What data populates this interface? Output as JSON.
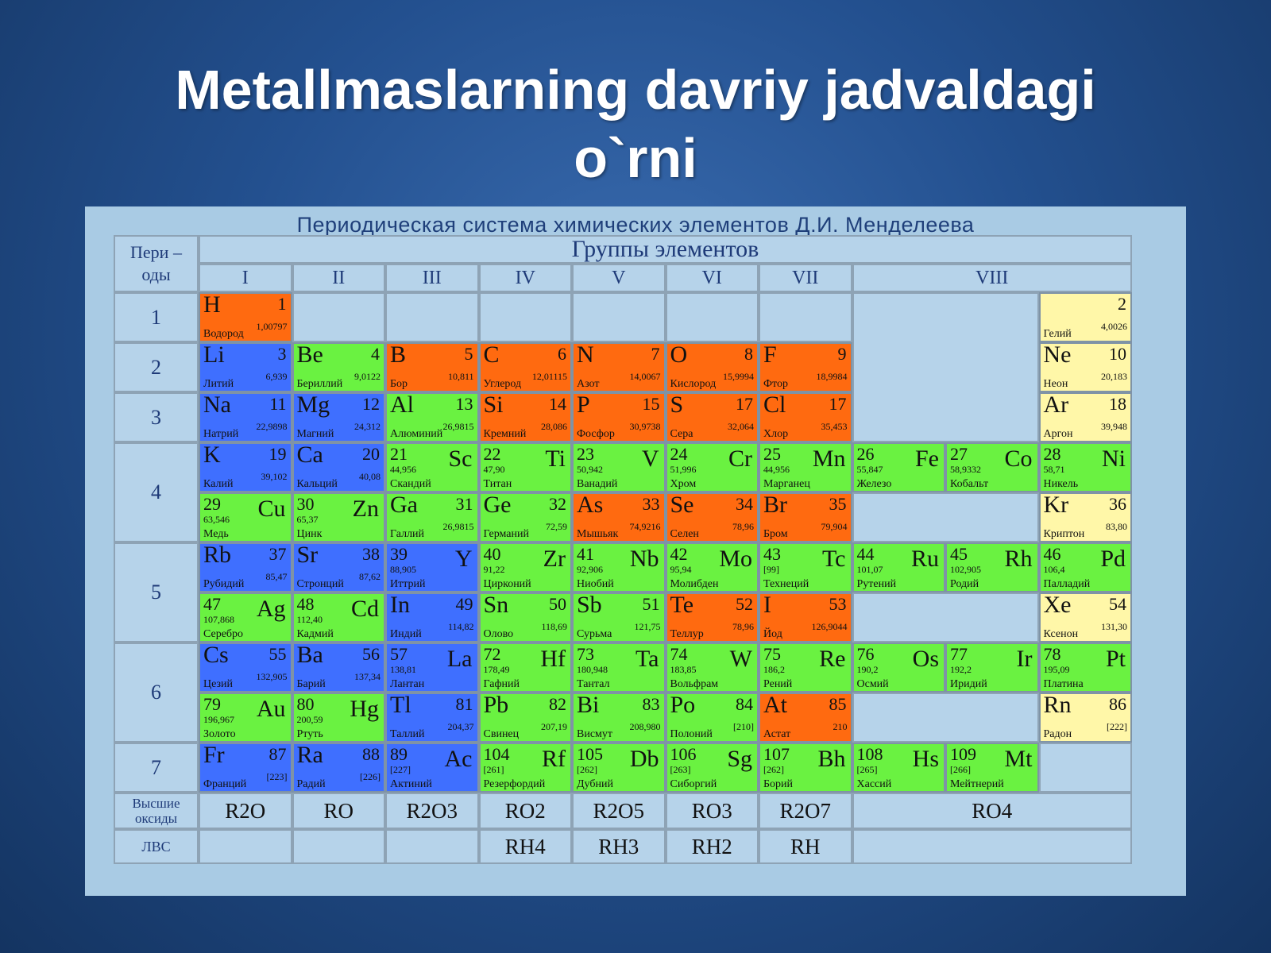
{
  "slide": {
    "title_line1": "Metallmaslarning davriy jadvaldagi",
    "title_line2": "o`rni"
  },
  "colors": {
    "nonmetal": "#ff6a10",
    "metal_sblock": "#3f6fff",
    "metal_other": "#6af241",
    "noble_gas": "#fff7a8",
    "empty": "#b6d3ea",
    "background": "#23508f"
  },
  "table": {
    "caption": "Периодическая система химических элементов Д.И. Менделеева",
    "periods_header": "Пери – оды",
    "groups_header": "Группы элементов",
    "groups": [
      "I",
      "II",
      "III",
      "IV",
      "V",
      "VI",
      "VII",
      "VIII"
    ],
    "periods": [
      "1",
      "2",
      "3",
      "4",
      "5",
      "6",
      "7"
    ],
    "oxides_label": "Высшие оксиды",
    "hydrides_label": "ЛВС",
    "oxides": [
      "R2O",
      "RO",
      "R2O3",
      "RO2",
      "R2O5",
      "RO3",
      "R2O7",
      "RO4"
    ],
    "hydrides": [
      "",
      "",
      "",
      "RH4",
      "RH3",
      "RH2",
      "RH",
      ""
    ]
  },
  "elements": [
    {
      "sym": "H",
      "num": "1",
      "mass": "1,00797",
      "name": "Водород",
      "cat": "nonmetal",
      "row": 0,
      "col": 0,
      "align": "L"
    },
    {
      "sym": "",
      "num": "2",
      "mass": "4,0026",
      "name": "Гелий",
      "cat": "noble_gas",
      "row": 0,
      "col": 9,
      "align": "L"
    },
    {
      "sym": "Li",
      "num": "3",
      "mass": "6,939",
      "name": "Литий",
      "cat": "metal_sblock",
      "row": 1,
      "col": 0,
      "align": "L"
    },
    {
      "sym": "Be",
      "num": "4",
      "mass": "9,0122",
      "name": "Бериллий",
      "cat": "metal_other",
      "row": 1,
      "col": 1,
      "align": "L"
    },
    {
      "sym": "B",
      "num": "5",
      "mass": "10,811",
      "name": "Бор",
      "cat": "nonmetal",
      "row": 1,
      "col": 2,
      "align": "L"
    },
    {
      "sym": "C",
      "num": "6",
      "mass": "12,01115",
      "name": "Углерод",
      "cat": "nonmetal",
      "row": 1,
      "col": 3,
      "align": "L"
    },
    {
      "sym": "N",
      "num": "7",
      "mass": "14,0067",
      "name": "Азот",
      "cat": "nonmetal",
      "row": 1,
      "col": 4,
      "align": "L"
    },
    {
      "sym": "O",
      "num": "8",
      "mass": "15,9994",
      "name": "Кислород",
      "cat": "nonmetal",
      "row": 1,
      "col": 5,
      "align": "L"
    },
    {
      "sym": "F",
      "num": "9",
      "mass": "18,9984",
      "name": "Фтор",
      "cat": "nonmetal",
      "row": 1,
      "col": 6,
      "align": "L"
    },
    {
      "sym": "Ne",
      "num": "10",
      "mass": "20,183",
      "name": "Неон",
      "cat": "noble_gas",
      "row": 1,
      "col": 9,
      "align": "L"
    },
    {
      "sym": "Na",
      "num": "11",
      "mass": "22,9898",
      "name": "Натрий",
      "cat": "metal_sblock",
      "row": 2,
      "col": 0,
      "align": "L"
    },
    {
      "sym": "Mg",
      "num": "12",
      "mass": "24,312",
      "name": "Магний",
      "cat": "metal_sblock",
      "row": 2,
      "col": 1,
      "align": "L"
    },
    {
      "sym": "Al",
      "num": "13",
      "mass": "26,9815",
      "name": "Алюминий",
      "cat": "metal_other",
      "row": 2,
      "col": 2,
      "align": "L"
    },
    {
      "sym": "Si",
      "num": "14",
      "mass": "28,086",
      "name": "Кремний",
      "cat": "nonmetal",
      "row": 2,
      "col": 3,
      "align": "L"
    },
    {
      "sym": "P",
      "num": "15",
      "mass": "30,9738",
      "name": "Фосфор",
      "cat": "nonmetal",
      "row": 2,
      "col": 4,
      "align": "L"
    },
    {
      "sym": "S",
      "num": "17",
      "mass": "32,064",
      "name": "Сера",
      "cat": "nonmetal",
      "row": 2,
      "col": 5,
      "align": "L"
    },
    {
      "sym": "Cl",
      "num": "17",
      "mass": "35,453",
      "name": "Хлор",
      "cat": "nonmetal",
      "row": 2,
      "col": 6,
      "align": "L"
    },
    {
      "sym": "Ar",
      "num": "18",
      "mass": "39,948",
      "name": "Аргон",
      "cat": "noble_gas",
      "row": 2,
      "col": 9,
      "align": "L"
    },
    {
      "sym": "K",
      "num": "19",
      "mass": "39,102",
      "name": "Калий",
      "cat": "metal_sblock",
      "row": 3,
      "col": 0,
      "align": "L"
    },
    {
      "sym": "Ca",
      "num": "20",
      "mass": "40,08",
      "name": "Кальций",
      "cat": "metal_sblock",
      "row": 3,
      "col": 1,
      "align": "L"
    },
    {
      "sym": "Sc",
      "num": "21",
      "mass": "44,956",
      "name": "Скандий",
      "cat": "metal_other",
      "row": 3,
      "col": 2,
      "align": "R"
    },
    {
      "sym": "Ti",
      "num": "22",
      "mass": "47,90",
      "name": "Титан",
      "cat": "metal_other",
      "row": 3,
      "col": 3,
      "align": "R"
    },
    {
      "sym": "V",
      "num": "23",
      "mass": "50,942",
      "name": "Ванадий",
      "cat": "metal_other",
      "row": 3,
      "col": 4,
      "align": "R"
    },
    {
      "sym": "Cr",
      "num": "24",
      "mass": "51,996",
      "name": "Хром",
      "cat": "metal_other",
      "row": 3,
      "col": 5,
      "align": "R"
    },
    {
      "sym": "Mn",
      "num": "25",
      "mass": "44,956",
      "name": "Марганец",
      "cat": "metal_other",
      "row": 3,
      "col": 6,
      "align": "R"
    },
    {
      "sym": "Fe",
      "num": "26",
      "mass": "55,847",
      "name": "Железо",
      "cat": "metal_other",
      "row": 3,
      "col": 7,
      "align": "R"
    },
    {
      "sym": "Co",
      "num": "27",
      "mass": "58,9332",
      "name": "Кобальт",
      "cat": "metal_other",
      "row": 3,
      "col": 8,
      "align": "R"
    },
    {
      "sym": "Ni",
      "num": "28",
      "mass": "58,71",
      "name": "Никель",
      "cat": "metal_other",
      "row": 3,
      "col": 9,
      "align": "R"
    },
    {
      "sym": "Cu",
      "num": "29",
      "mass": "63,546",
      "name": "Медь",
      "cat": "metal_other",
      "row": 4,
      "col": 0,
      "align": "R"
    },
    {
      "sym": "Zn",
      "num": "30",
      "mass": "65,37",
      "name": "Цинк",
      "cat": "metal_other",
      "row": 4,
      "col": 1,
      "align": "R"
    },
    {
      "sym": "Ga",
      "num": "31",
      "mass": "26,9815",
      "name": "Галлий",
      "cat": "metal_other",
      "row": 4,
      "col": 2,
      "align": "L"
    },
    {
      "sym": "Ge",
      "num": "32",
      "mass": "72,59",
      "name": "Германий",
      "cat": "metal_other",
      "row": 4,
      "col": 3,
      "align": "L"
    },
    {
      "sym": "As",
      "num": "33",
      "mass": "74,9216",
      "name": "Мышьяк",
      "cat": "nonmetal",
      "row": 4,
      "col": 4,
      "align": "L"
    },
    {
      "sym": "Se",
      "num": "34",
      "mass": "78,96",
      "name": "Селен",
      "cat": "nonmetal",
      "row": 4,
      "col": 5,
      "align": "L"
    },
    {
      "sym": "Br",
      "num": "35",
      "mass": "79,904",
      "name": "Бром",
      "cat": "nonmetal",
      "row": 4,
      "col": 6,
      "align": "L"
    },
    {
      "sym": "Kr",
      "num": "36",
      "mass": "83,80",
      "name": "Криптон",
      "cat": "noble_gas",
      "row": 4,
      "col": 9,
      "align": "L"
    },
    {
      "sym": "Rb",
      "num": "37",
      "mass": "85,47",
      "name": "Рубидий",
      "cat": "metal_sblock",
      "row": 5,
      "col": 0,
      "align": "L"
    },
    {
      "sym": "Sr",
      "num": "38",
      "mass": "87,62",
      "name": "Стронций",
      "cat": "metal_sblock",
      "row": 5,
      "col": 1,
      "align": "L"
    },
    {
      "sym": "Y",
      "num": "39",
      "mass": "88,905",
      "name": "Иттрий",
      "cat": "metal_sblock",
      "row": 5,
      "col": 2,
      "align": "R"
    },
    {
      "sym": "Zr",
      "num": "40",
      "mass": "91,22",
      "name": "Цирконий",
      "cat": "metal_other",
      "row": 5,
      "col": 3,
      "align": "R"
    },
    {
      "sym": "Nb",
      "num": "41",
      "mass": "92,906",
      "name": "Ниобий",
      "cat": "metal_other",
      "row": 5,
      "col": 4,
      "align": "R"
    },
    {
      "sym": "Mo",
      "num": "42",
      "mass": "95,94",
      "name": "Молибден",
      "cat": "metal_other",
      "row": 5,
      "col": 5,
      "align": "R"
    },
    {
      "sym": "Tc",
      "num": "43",
      "mass": "[99]",
      "name": "Технеций",
      "cat": "metal_other",
      "row": 5,
      "col": 6,
      "align": "R"
    },
    {
      "sym": "Ru",
      "num": "44",
      "mass": "101,07",
      "name": "Рутений",
      "cat": "metal_other",
      "row": 5,
      "col": 7,
      "align": "R"
    },
    {
      "sym": "Rh",
      "num": "45",
      "mass": "102,905",
      "name": "Родий",
      "cat": "metal_other",
      "row": 5,
      "col": 8,
      "align": "R"
    },
    {
      "sym": "Pd",
      "num": "46",
      "mass": "106,4",
      "name": "Палладий",
      "cat": "metal_other",
      "row": 5,
      "col": 9,
      "align": "R"
    },
    {
      "sym": "Ag",
      "num": "47",
      "mass": "107,868",
      "name": "Серебро",
      "cat": "metal_other",
      "row": 6,
      "col": 0,
      "align": "R"
    },
    {
      "sym": "Cd",
      "num": "48",
      "mass": "112,40",
      "name": "Кадмий",
      "cat": "metal_other",
      "row": 6,
      "col": 1,
      "align": "R"
    },
    {
      "sym": "In",
      "num": "49",
      "mass": "114,82",
      "name": "Индий",
      "cat": "metal_sblock",
      "row": 6,
      "col": 2,
      "align": "L"
    },
    {
      "sym": "Sn",
      "num": "50",
      "mass": "118,69",
      "name": "Олово",
      "cat": "metal_other",
      "row": 6,
      "col": 3,
      "align": "L"
    },
    {
      "sym": "Sb",
      "num": "51",
      "mass": "121,75",
      "name": "Сурьма",
      "cat": "metal_other",
      "row": 6,
      "col": 4,
      "align": "L"
    },
    {
      "sym": "Te",
      "num": "52",
      "mass": "78,96",
      "name": "Теллур",
      "cat": "nonmetal",
      "row": 6,
      "col": 5,
      "align": "L"
    },
    {
      "sym": "I",
      "num": "53",
      "mass": "126,9044",
      "name": "Йод",
      "cat": "nonmetal",
      "row": 6,
      "col": 6,
      "align": "L"
    },
    {
      "sym": "Xe",
      "num": "54",
      "mass": "131,30",
      "name": "Ксенон",
      "cat": "noble_gas",
      "row": 6,
      "col": 9,
      "align": "L"
    },
    {
      "sym": "Cs",
      "num": "55",
      "mass": "132,905",
      "name": "Цезий",
      "cat": "metal_sblock",
      "row": 7,
      "col": 0,
      "align": "L"
    },
    {
      "sym": "Ba",
      "num": "56",
      "mass": "137,34",
      "name": "Барий",
      "cat": "metal_sblock",
      "row": 7,
      "col": 1,
      "align": "L"
    },
    {
      "sym": "La",
      "num": "57",
      "mass": "138,81",
      "name": "Лантан",
      "cat": "metal_sblock",
      "row": 7,
      "col": 2,
      "align": "R"
    },
    {
      "sym": "Hf",
      "num": "72",
      "mass": "178,49",
      "name": "Гафний",
      "cat": "metal_other",
      "row": 7,
      "col": 3,
      "align": "R"
    },
    {
      "sym": "Ta",
      "num": "73",
      "mass": "180,948",
      "name": "Тантал",
      "cat": "metal_other",
      "row": 7,
      "col": 4,
      "align": "R"
    },
    {
      "sym": "W",
      "num": "74",
      "mass": "183,85",
      "name": "Вольфрам",
      "cat": "metal_other",
      "row": 7,
      "col": 5,
      "align": "R"
    },
    {
      "sym": "Re",
      "num": "75",
      "mass": "186,2",
      "name": "Рений",
      "cat": "metal_other",
      "row": 7,
      "col": 6,
      "align": "R"
    },
    {
      "sym": "Os",
      "num": "76",
      "mass": "190,2",
      "name": "Осмий",
      "cat": "metal_other",
      "row": 7,
      "col": 7,
      "align": "R"
    },
    {
      "sym": "Ir",
      "num": "77",
      "mass": "192,2",
      "name": "Иридий",
      "cat": "metal_other",
      "row": 7,
      "col": 8,
      "align": "R"
    },
    {
      "sym": "Pt",
      "num": "78",
      "mass": "195,09",
      "name": "Платина",
      "cat": "metal_other",
      "row": 7,
      "col": 9,
      "align": "R"
    },
    {
      "sym": "Au",
      "num": "79",
      "mass": "196,967",
      "name": "Золото",
      "cat": "metal_other",
      "row": 8,
      "col": 0,
      "align": "R"
    },
    {
      "sym": "Hg",
      "num": "80",
      "mass": "200,59",
      "name": "Ртуть",
      "cat": "metal_other",
      "row": 8,
      "col": 1,
      "align": "R"
    },
    {
      "sym": "Tl",
      "num": "81",
      "mass": "204,37",
      "name": "Таллий",
      "cat": "metal_sblock",
      "row": 8,
      "col": 2,
      "align": "L"
    },
    {
      "sym": "Pb",
      "num": "82",
      "mass": "207,19",
      "name": "Свинец",
      "cat": "metal_other",
      "row": 8,
      "col": 3,
      "align": "L"
    },
    {
      "sym": "Bi",
      "num": "83",
      "mass": "208,980",
      "name": "Висмут",
      "cat": "metal_other",
      "row": 8,
      "col": 4,
      "align": "L"
    },
    {
      "sym": "Po",
      "num": "84",
      "mass": "[210]",
      "name": "Полоний",
      "cat": "metal_other",
      "row": 8,
      "col": 5,
      "align": "L"
    },
    {
      "sym": "At",
      "num": "85",
      "mass": "210",
      "name": "Астат",
      "cat": "nonmetal",
      "row": 8,
      "col": 6,
      "align": "L"
    },
    {
      "sym": "Rn",
      "num": "86",
      "mass": "[222]",
      "name": "Радон",
      "cat": "noble_gas",
      "row": 8,
      "col": 9,
      "align": "L"
    },
    {
      "sym": "Fr",
      "num": "87",
      "mass": "[223]",
      "name": "Франций",
      "cat": "metal_sblock",
      "row": 9,
      "col": 0,
      "align": "L"
    },
    {
      "sym": "Ra",
      "num": "88",
      "mass": "[226]",
      "name": "Радий",
      "cat": "metal_sblock",
      "row": 9,
      "col": 1,
      "align": "L"
    },
    {
      "sym": "Ac",
      "num": "89",
      "mass": "[227]",
      "name": "Актиний",
      "cat": "metal_sblock",
      "row": 9,
      "col": 2,
      "align": "R"
    },
    {
      "sym": "Rf",
      "num": "104",
      "mass": "[261]",
      "name": "Резерфордий",
      "cat": "metal_other",
      "row": 9,
      "col": 3,
      "align": "R"
    },
    {
      "sym": "Db",
      "num": "105",
      "mass": "[262]",
      "name": "Дубний",
      "cat": "metal_other",
      "row": 9,
      "col": 4,
      "align": "R"
    },
    {
      "sym": "Sg",
      "num": "106",
      "mass": "[263]",
      "name": "Сиборгий",
      "cat": "metal_other",
      "row": 9,
      "col": 5,
      "align": "R"
    },
    {
      "sym": "Bh",
      "num": "107",
      "mass": "[262]",
      "name": "Борий",
      "cat": "metal_other",
      "row": 9,
      "col": 6,
      "align": "R"
    },
    {
      "sym": "Hs",
      "num": "108",
      "mass": "[265]",
      "name": "Хассий",
      "cat": "metal_other",
      "row": 9,
      "col": 7,
      "align": "R"
    },
    {
      "sym": "Mt",
      "num": "109",
      "mass": "[266]",
      "name": "Мейтнерий",
      "cat": "metal_other",
      "row": 9,
      "col": 8,
      "align": "R"
    }
  ]
}
